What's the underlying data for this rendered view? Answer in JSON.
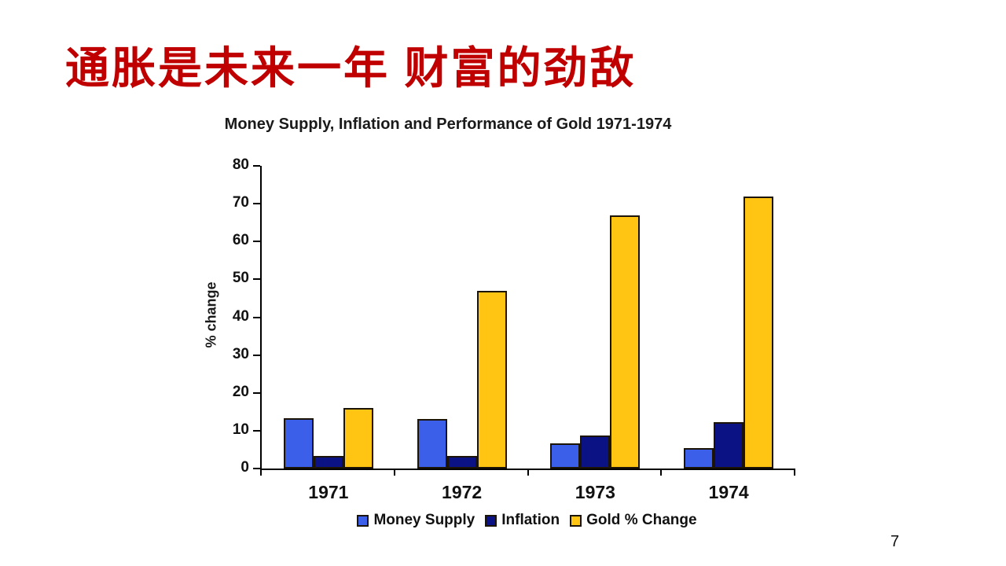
{
  "slide": {
    "title": "通胀是未来一年 财富的劲敌",
    "title_color": "#C00000",
    "page_number": "7"
  },
  "chart_data": {
    "type": "bar",
    "title": "Money Supply, Inflation and Performance of Gold 1971-1974",
    "xlabel": "",
    "ylabel": "% change",
    "categories": [
      "1971",
      "1972",
      "1973",
      "1974"
    ],
    "series": [
      {
        "name": "Money Supply",
        "color": "#3B5FE9",
        "values": [
          13.3,
          13.0,
          6.6,
          5.5
        ]
      },
      {
        "name": "Inflation",
        "color": "#0B1384",
        "values": [
          3.3,
          3.4,
          8.8,
          12.3
        ]
      },
      {
        "name": "Gold % Change",
        "color": "#FFC512",
        "values": [
          16,
          47,
          67,
          72
        ]
      }
    ],
    "ylim": [
      0,
      80
    ],
    "ytick_step": 10,
    "grid": false,
    "legend_position": "bottom",
    "axis_color": "#000000"
  }
}
